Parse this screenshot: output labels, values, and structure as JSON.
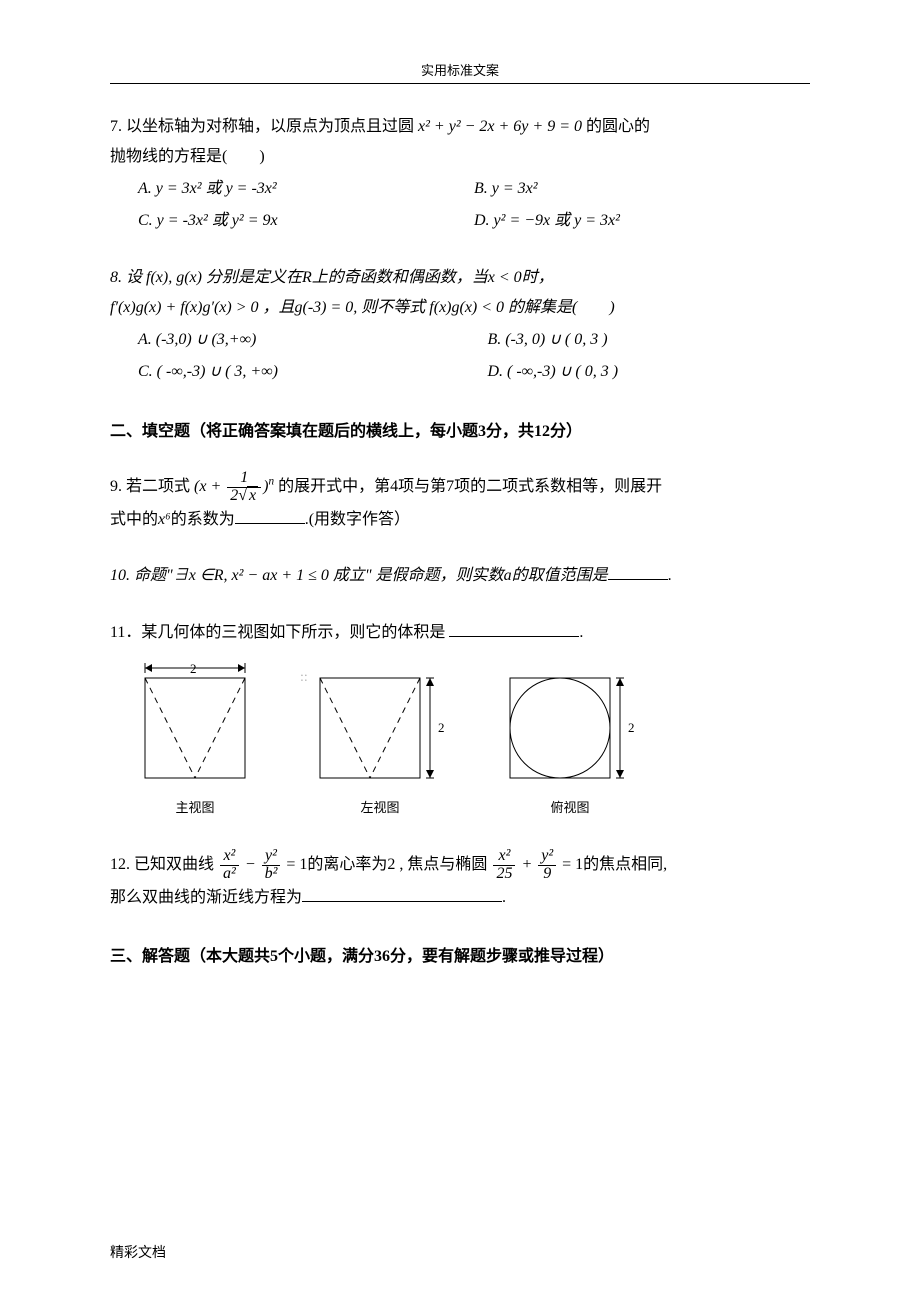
{
  "header": {
    "title": "实用标准文案"
  },
  "q7": {
    "line1_a": "7. 以坐标轴为对称轴，以原点为顶点且过圆 ",
    "line1_eq": "x² + y² − 2x + 6y + 9 = 0",
    "line1_b": " 的圆心的",
    "line2": "抛物线的方程是(  )",
    "A": "A.  y = 3x² 或 y = -3x²",
    "B": "B.  y = 3x²",
    "C": "C.  y = -3x²  或  y² = 9x",
    "D": "D.  y² = −9x 或  y = 3x²"
  },
  "q8": {
    "line1": "8. 设 f(x), g(x) 分别是定义在R上的奇函数和偶函数，当x < 0时，",
    "line2_a": "f′(x)g(x) + f(x)g′(x) > 0 ，且g(-3) = 0, 则不等式 f(x)g(x) < 0 的解集是(  )",
    "A": "A. (-3,0) ∪ (3,+∞)",
    "B": "B. (-3, 0) ∪ ( 0, 3 )",
    "C": "C. ( -∞,-3) ∪ ( 3, +∞)",
    "D": "D. ( -∞,-3) ∪ ( 0, 3 )"
  },
  "section2": {
    "heading": "二、填空题（将正确答案填在题后的横线上，每小题3分，共12分）"
  },
  "q9": {
    "pre": "9. 若二项式 ",
    "paren_open": "(x + ",
    "frac_num": "1",
    "frac_den_a": "2",
    "frac_den_b": "x",
    "paren_close": ")",
    "superscript": "n",
    "post": " 的展开式中，第4项与第7项的二项式系数相等，则展开",
    "line2_a": "式中的",
    "line2_mid": "x⁶",
    "line2_b": "的系数为",
    "line2_c": ".(用数字作答）"
  },
  "q10": {
    "text_a": "10. 命题\"∃x ∈R, x² − ax + 1 ≤ 0 成立\" 是假命题，则实数a的取值范围是",
    "text_b": "."
  },
  "q11": {
    "text_a": "11．某几何体的三视图如下所示，则它的体积是 ",
    "text_b": ".",
    "labels": {
      "front": "主视图",
      "side": "左视图",
      "top": "俯视图"
    },
    "dims": {
      "two_top": "2",
      "two_right1": "2",
      "two_right2": "2"
    },
    "svg": {
      "box_size": 100,
      "stroke": "#000000",
      "dash": "6,5",
      "arrow_color": "#000000",
      "label_font_size": 13
    }
  },
  "q12": {
    "a": "12. 已知双曲线 ",
    "frac1_num": "x²",
    "frac1_den": "a²",
    "minus": " − ",
    "frac2_num": "y²",
    "frac2_den": "b²",
    "b": " = 1的离心率为2 , 焦点与椭圆 ",
    "frac3_num": "x²",
    "frac3_den": "25",
    "plus": " + ",
    "frac4_num": "y²",
    "frac4_den": "9",
    "c": " = 1的焦点相同,",
    "line2_a": "那么双曲线的渐近线方程为",
    "line2_b": "."
  },
  "section3": {
    "heading": "三、解答题（本大题共5个小题，满分36分，要有解题步骤或推导过程）"
  },
  "footer": {
    "text": "精彩文档"
  },
  "watermark": {
    "text": "::"
  },
  "style": {
    "blank_widths": {
      "q9": 70,
      "q10": 60,
      "q11": 130,
      "q12": 200
    }
  }
}
